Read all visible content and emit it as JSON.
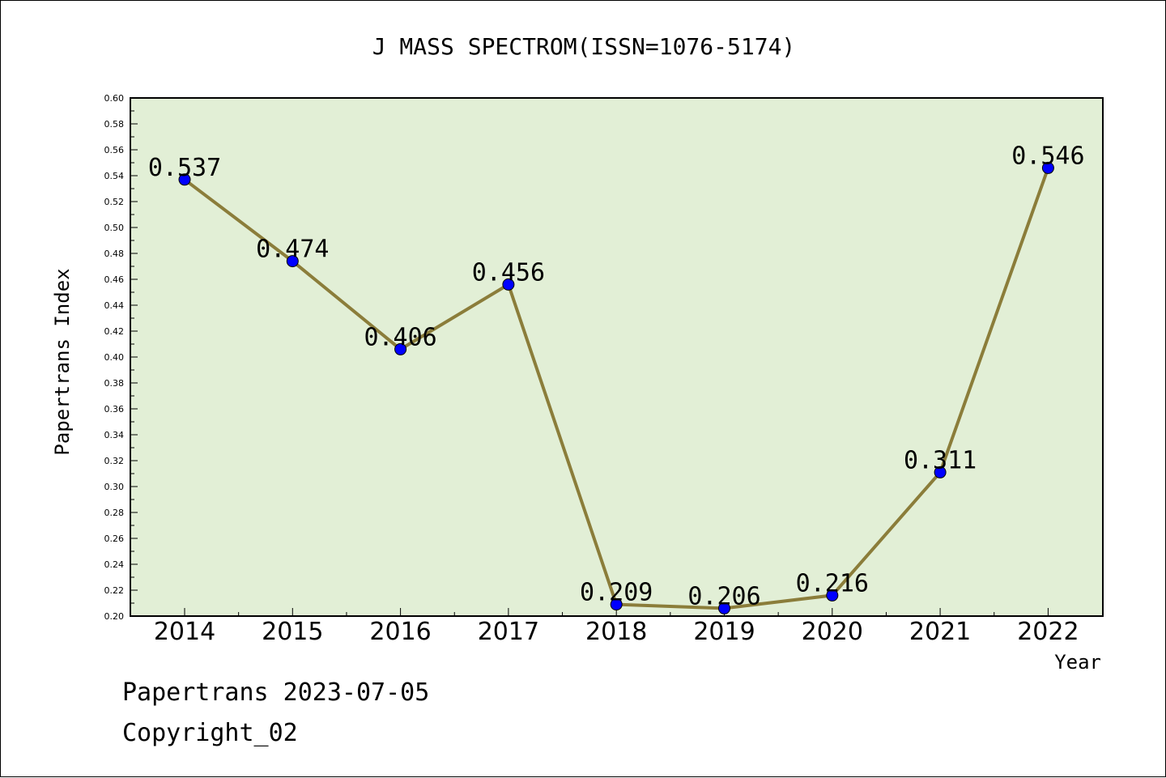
{
  "chart_data": {
    "type": "line",
    "title": "J MASS SPECTROM(ISSN=1076-5174)",
    "xlabel": "Year",
    "ylabel": "Papertrans Index",
    "categories": [
      "2014",
      "2015",
      "2016",
      "2017",
      "2018",
      "2019",
      "2020",
      "2021",
      "2022"
    ],
    "series": [
      {
        "values": [
          0.537,
          0.474,
          0.406,
          0.456,
          0.209,
          0.206,
          0.216,
          0.311,
          0.546
        ],
        "labels": [
          "0.537",
          "0.474",
          "0.406",
          "0.456",
          "0.209",
          "0.206",
          "0.216",
          "0.311",
          "0.546"
        ]
      }
    ],
    "ylim": [
      0.2,
      0.6
    ],
    "yticks": [
      "0.20",
      "0.22",
      "0.24",
      "0.26",
      "0.28",
      "0.30",
      "0.32",
      "0.34",
      "0.36",
      "0.38",
      "0.40",
      "0.42",
      "0.44",
      "0.46",
      "0.48",
      "0.50",
      "0.52",
      "0.54",
      "0.56",
      "0.58",
      "0.60"
    ],
    "grid": false,
    "legend": "none",
    "colors": {
      "plot_background": "#e2efd6",
      "line": "#8b7d3a",
      "marker": "#0000ff"
    }
  },
  "footer": {
    "date_line": "Papertrans 2023-07-05",
    "copyright_line": "Copyright_02"
  }
}
